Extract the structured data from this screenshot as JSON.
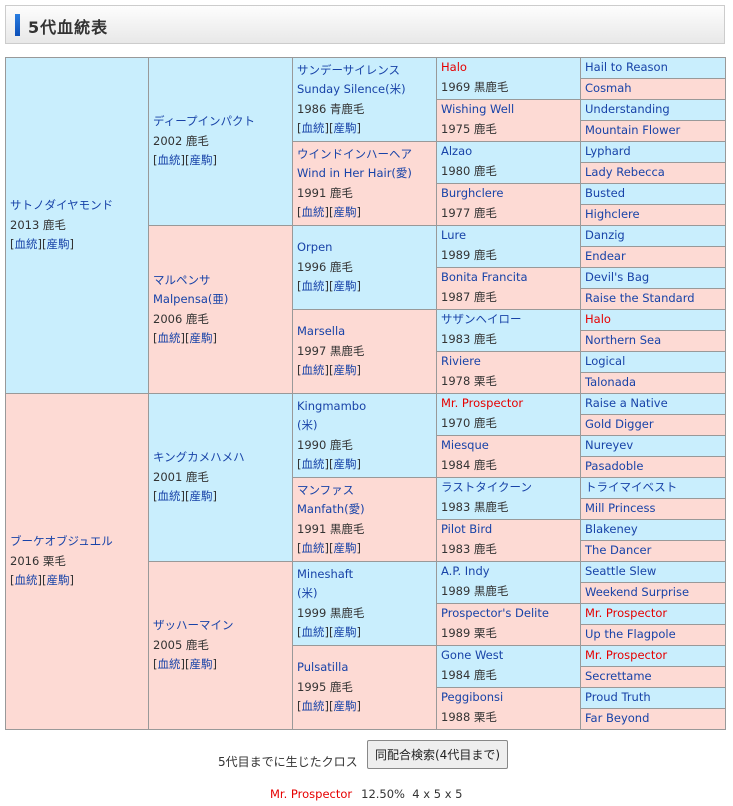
{
  "header": {
    "title": "5代血統表"
  },
  "links": {
    "pedigree": "血統",
    "offspring": "産駒"
  },
  "colors": {
    "male_bg": "#c9eefd",
    "female_bg": "#fddad4",
    "link": "#1843a8",
    "highlight": "#e60000"
  },
  "pedigree": {
    "gen1": [
      {
        "name": "サトノダイヤモンド",
        "info": "2013 鹿毛"
      },
      {
        "name": "ブーケオブジュエル",
        "info": "2016 栗毛"
      }
    ],
    "gen2": [
      {
        "name": "ディープインパクト",
        "info": "2002 鹿毛"
      },
      {
        "name": "マルペンサ",
        "sub": "Malpensa(亜)",
        "info": "2006 鹿毛"
      },
      {
        "name": "キングカメハメハ",
        "info": "2001 鹿毛"
      },
      {
        "name": "ザッハーマイン",
        "info": "2005 鹿毛"
      }
    ],
    "gen3": [
      {
        "name": "サンデーサイレンス",
        "sub": "Sunday Silence(米)",
        "info": "1986 青鹿毛"
      },
      {
        "name": "ウインドインハーヘア",
        "sub": "Wind in Her Hair(愛)",
        "info": "1991 鹿毛"
      },
      {
        "name": "Orpen",
        "info": "1996 鹿毛"
      },
      {
        "name": "Marsella",
        "info": "1997 黒鹿毛"
      },
      {
        "name": "Kingmambo",
        "sub": "(米)",
        "info": "1990 鹿毛"
      },
      {
        "name": "マンファス",
        "sub": "Manfath(愛)",
        "info": "1991 黒鹿毛"
      },
      {
        "name": "Mineshaft",
        "sub": "(米)",
        "info": "1999 黒鹿毛"
      },
      {
        "name": "Pulsatilla",
        "info": "1995 鹿毛"
      }
    ],
    "gen4": [
      {
        "name": "Halo",
        "info": "1969 黒鹿毛",
        "cross": true
      },
      {
        "name": "Wishing Well",
        "info": "1975 鹿毛"
      },
      {
        "name": "Alzao",
        "info": "1980 鹿毛"
      },
      {
        "name": "Burghclere",
        "info": "1977 鹿毛"
      },
      {
        "name": "Lure",
        "info": "1989 鹿毛"
      },
      {
        "name": "Bonita Francita",
        "info": "1987 鹿毛"
      },
      {
        "name": "サザンヘイロー",
        "info": "1983 鹿毛"
      },
      {
        "name": "Riviere",
        "info": "1978 栗毛"
      },
      {
        "name": "Mr. Prospector",
        "info": "1970 鹿毛",
        "cross": true
      },
      {
        "name": "Miesque",
        "info": "1984 鹿毛"
      },
      {
        "name": "ラストタイクーン",
        "info": "1983 黒鹿毛"
      },
      {
        "name": "Pilot Bird",
        "info": "1983 鹿毛"
      },
      {
        "name": "A.P. Indy",
        "info": "1989 黒鹿毛"
      },
      {
        "name": "Prospector's Delite",
        "info": "1989 栗毛"
      },
      {
        "name": "Gone West",
        "info": "1984 鹿毛"
      },
      {
        "name": "Peggibonsi",
        "info": "1988 栗毛"
      }
    ],
    "gen5": [
      {
        "name": "Hail to Reason"
      },
      {
        "name": "Cosmah"
      },
      {
        "name": "Understanding"
      },
      {
        "name": "Mountain Flower"
      },
      {
        "name": "Lyphard"
      },
      {
        "name": "Lady Rebecca"
      },
      {
        "name": "Busted"
      },
      {
        "name": "Highclere"
      },
      {
        "name": "Danzig"
      },
      {
        "name": "Endear"
      },
      {
        "name": "Devil's Bag"
      },
      {
        "name": "Raise the Standard"
      },
      {
        "name": "Halo",
        "cross": true
      },
      {
        "name": "Northern Sea"
      },
      {
        "name": "Logical"
      },
      {
        "name": "Talonada"
      },
      {
        "name": "Raise a Native"
      },
      {
        "name": "Gold Digger"
      },
      {
        "name": "Nureyev"
      },
      {
        "name": "Pasadoble"
      },
      {
        "name": "トライマイベスト"
      },
      {
        "name": "Mill Princess"
      },
      {
        "name": "Blakeney"
      },
      {
        "name": "The Dancer"
      },
      {
        "name": "Seattle Slew"
      },
      {
        "name": "Weekend Surprise"
      },
      {
        "name": "Mr. Prospector",
        "cross": true
      },
      {
        "name": "Up the Flagpole"
      },
      {
        "name": "Mr. Prospector",
        "cross": true
      },
      {
        "name": "Secrettame"
      },
      {
        "name": "Proud Truth"
      },
      {
        "name": "Far Beyond"
      }
    ]
  },
  "footer": {
    "cross_label": "5代目までに生じたクロス",
    "search_button": "同配合検索(4代目まで)",
    "crosses": [
      {
        "name": "Mr. Prospector",
        "percent": "12.50%",
        "pattern": "4 x 5 x 5"
      }
    ]
  }
}
